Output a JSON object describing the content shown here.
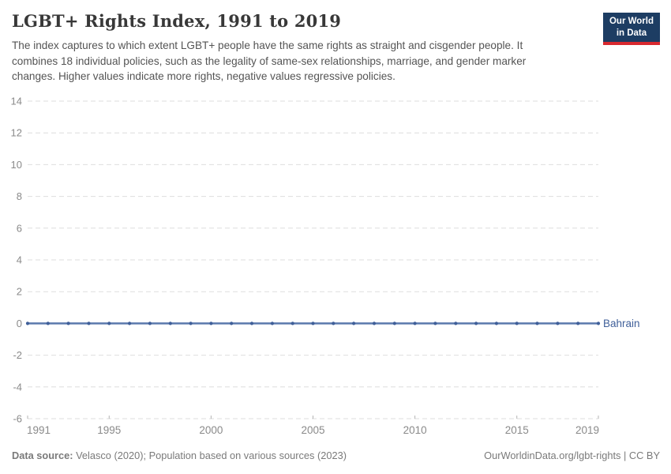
{
  "header": {
    "title": "LGBT+ Rights Index, 1991 to 2019",
    "subtitle": "The index captures to which extent LGBT+ people have the same rights as straight and cisgender people. It combines 18 individual policies, such as the legality of same-sex relationships, marriage, and gender marker changes. Higher values indicate more rights, negative values regressive policies.",
    "logo": {
      "line1": "Our World",
      "line2": "in Data",
      "bg_color": "#1d3d63",
      "accent_color": "#d8292f"
    }
  },
  "footer": {
    "source_label": "Data source:",
    "source_text": " Velasco (2020); Population based on various sources (2023)",
    "link_text": "OurWorldinData.org/lgbt-rights | CC BY"
  },
  "chart_data": {
    "type": "line",
    "title": "LGBT+ Rights Index, 1991 to 2019",
    "x": [
      1991,
      1992,
      1993,
      1994,
      1995,
      1996,
      1997,
      1998,
      1999,
      2000,
      2001,
      2002,
      2003,
      2004,
      2005,
      2006,
      2007,
      2008,
      2009,
      2010,
      2011,
      2012,
      2013,
      2014,
      2015,
      2016,
      2017,
      2018,
      2019
    ],
    "series": [
      {
        "name": "Bahrain",
        "values": [
          0,
          0,
          0,
          0,
          0,
          0,
          0,
          0,
          0,
          0,
          0,
          0,
          0,
          0,
          0,
          0,
          0,
          0,
          0,
          0,
          0,
          0,
          0,
          0,
          0,
          0,
          0,
          0,
          0
        ],
        "line_color": "#5b79ad",
        "marker_color": "#3f5f99",
        "label_color": "#3f5f99"
      }
    ],
    "xlabel": "",
    "ylabel": "",
    "ylim": [
      -6,
      14
    ],
    "yticks": [
      -6,
      -4,
      -2,
      0,
      2,
      4,
      6,
      8,
      10,
      12,
      14
    ],
    "xticks": [
      1991,
      1995,
      2000,
      2005,
      2010,
      2015,
      2019
    ],
    "grid": true,
    "grid_color": "#dedede",
    "zero_line_color": "#9c9c9c",
    "axis_tick_color": "#b5b5b5",
    "axis_label_color": "#8a8a8a",
    "legend_position": "right-of-line"
  }
}
